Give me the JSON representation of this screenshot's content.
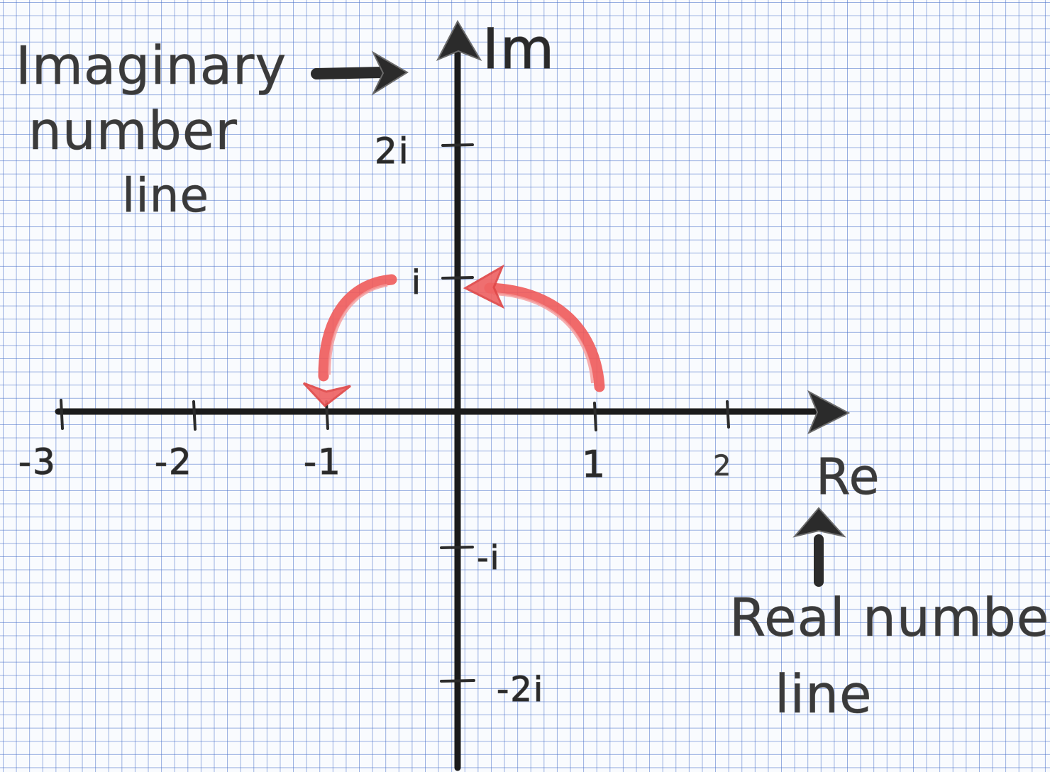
{
  "labels": {
    "imaginary_line_1": "Imaginary",
    "imaginary_line_2": "number",
    "imaginary_line_3": "line",
    "real_line_1": "Real number",
    "real_line_2": "line",
    "im_axis": "Im",
    "re_axis": "Re"
  },
  "real_ticks": [
    {
      "value": -3,
      "label": "-3"
    },
    {
      "value": -2,
      "label": "-2"
    },
    {
      "value": -1,
      "label": "-1"
    },
    {
      "value": 1,
      "label": "1"
    },
    {
      "value": 2,
      "label": "2"
    }
  ],
  "imag_ticks": [
    {
      "value": 2,
      "label": "2i"
    },
    {
      "value": 1,
      "label": "i"
    },
    {
      "value": -1,
      "label": "-i"
    },
    {
      "value": -2,
      "label": "-2i"
    }
  ],
  "rotation": {
    "from": 1,
    "via": "i",
    "to": -1
  },
  "colors": {
    "grid": "#466ec8",
    "axes": "#1b1b1b",
    "rotation_arrow": "#ee5a5a",
    "text": "#2a2a2a"
  }
}
